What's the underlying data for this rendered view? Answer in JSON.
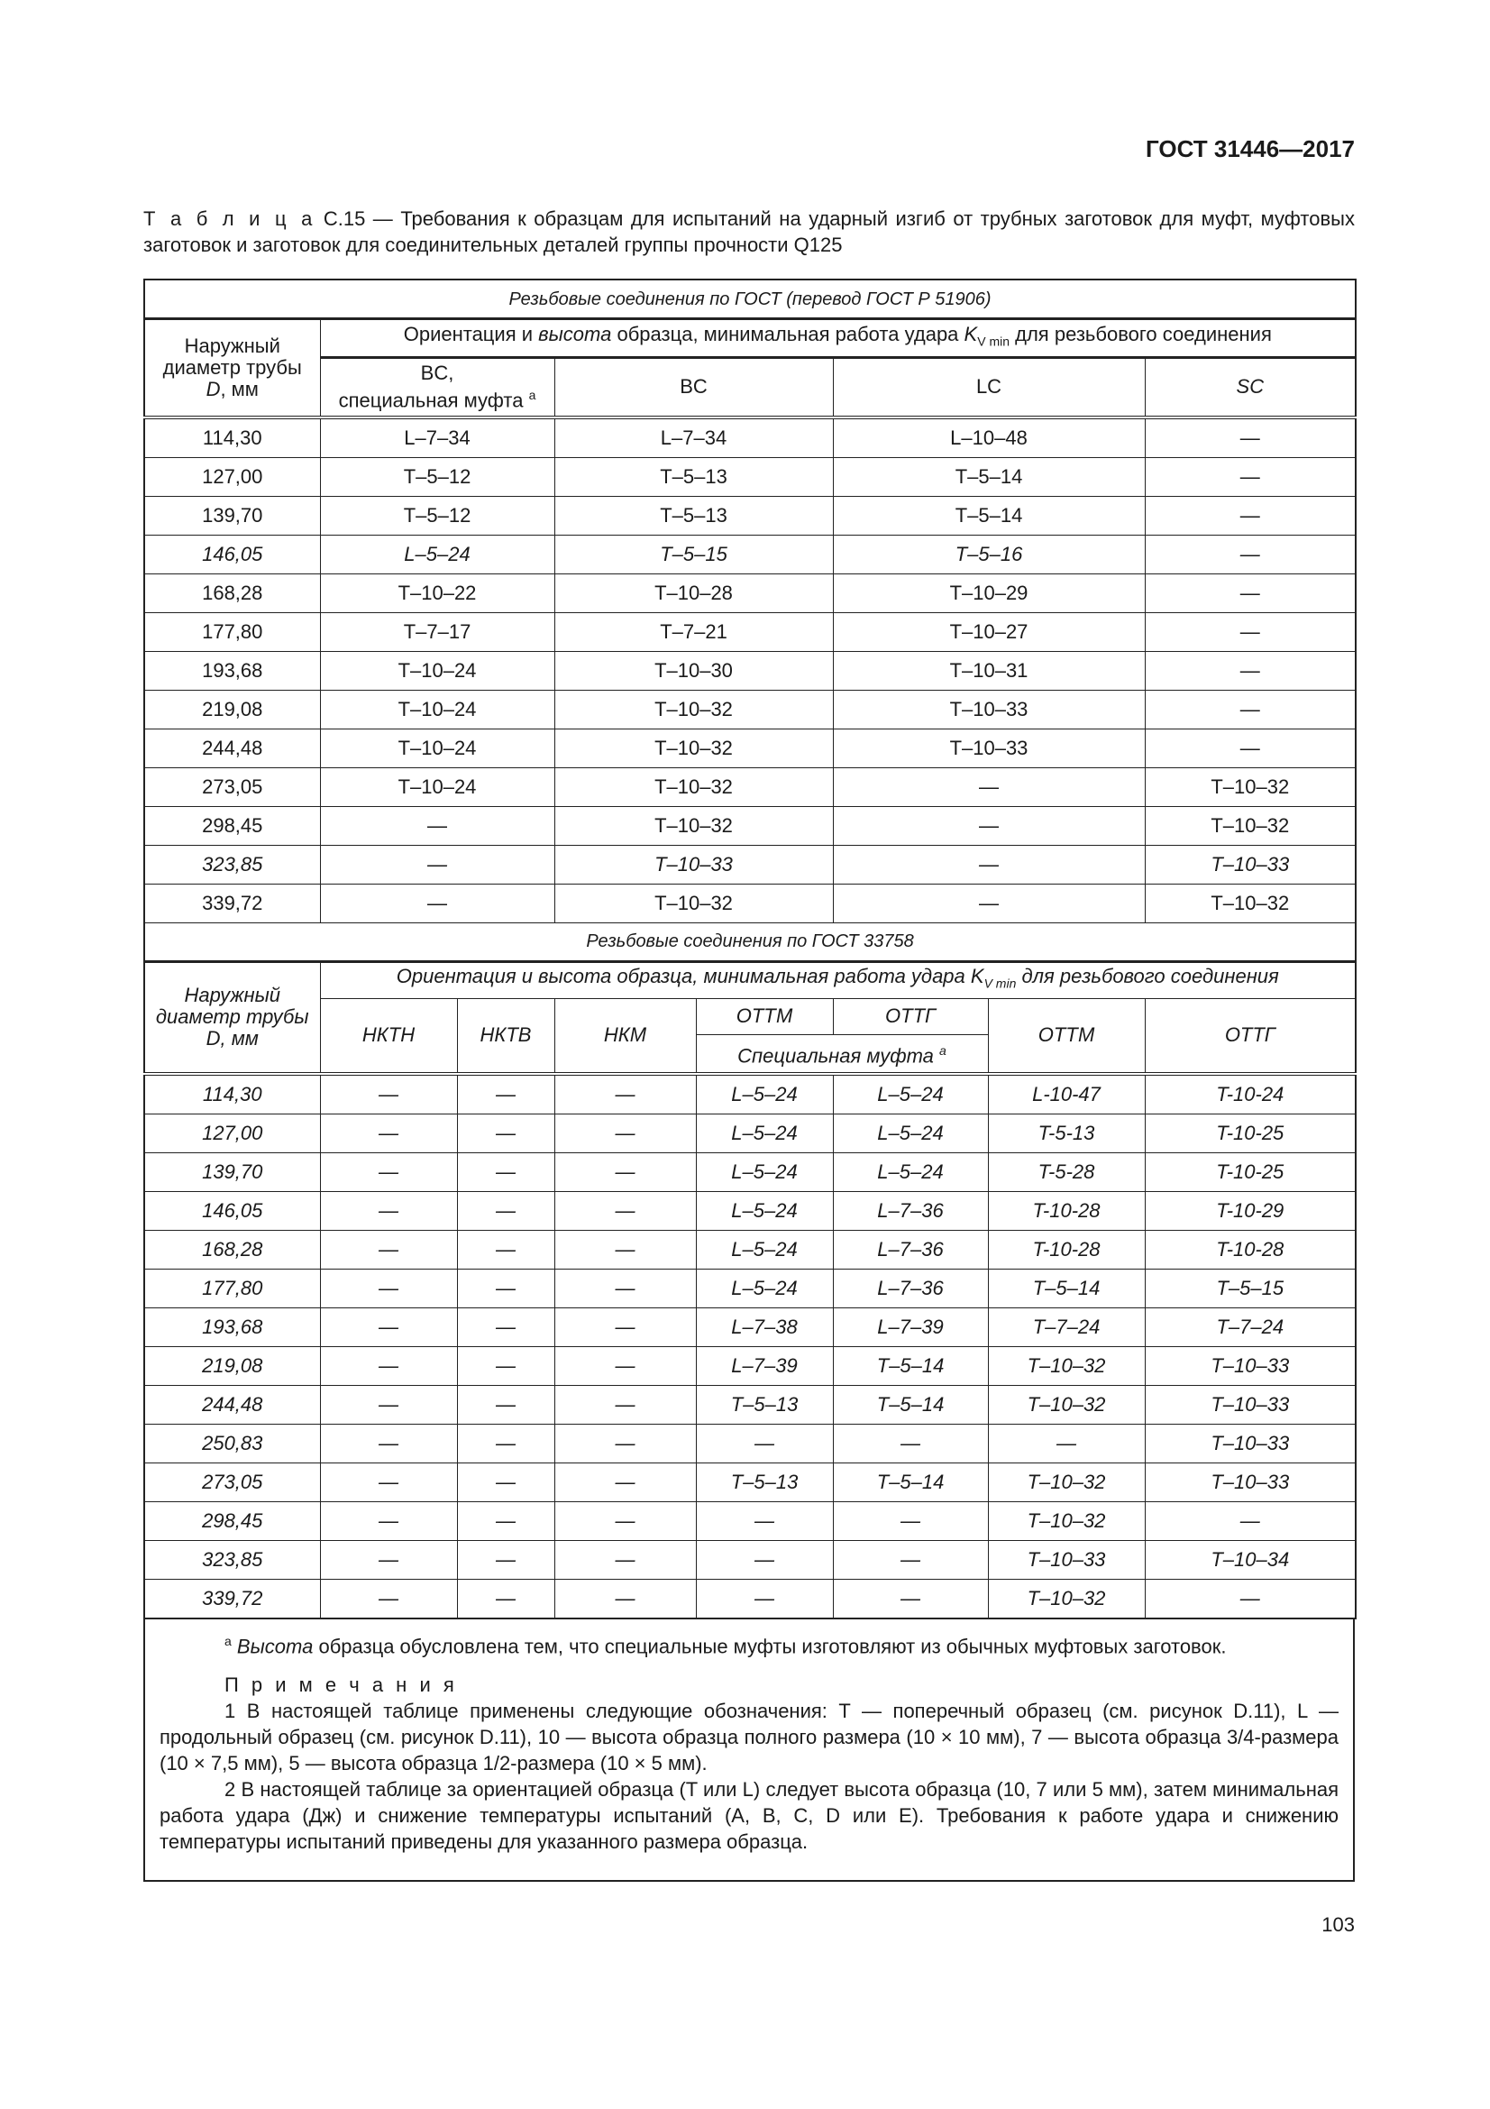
{
  "header": {
    "doc_id": "ГОСТ 31446—2017"
  },
  "caption": {
    "label": "Т а б л и ц а",
    "text": "С.15 — Требования к образцам для испытаний на ударный изгиб от трубных заготовок для муфт, муфтовых заготовок и заготовок для соединительных деталей группы прочности Q125"
  },
  "table1": {
    "section": "Резьбовые соединения по ГОСТ (перевод ГОСТ Р 51906)",
    "col_diameter": "Наружный диаметр трубы",
    "col_diameter_unit_d": "D",
    "col_diameter_unit": ", мм",
    "group_pre": "Ориентация и ",
    "group_it": "высота",
    "group_mid": " образца, минимальная работа удара ",
    "group_k": "K",
    "group_sub": "V min",
    "group_post": " для резьбового соединения",
    "cols": [
      "BC,",
      "BC",
      "LC",
      "SC"
    ],
    "col1_sub": "специальная муфта",
    "footnote_mark": "a",
    "rows": [
      {
        "d": "114,30",
        "v": [
          "L–7–34",
          "L–7–34",
          "L–10–48",
          "—"
        ]
      },
      {
        "d": "127,00",
        "v": [
          "T–5–12",
          "T–5–13",
          "T–5–14",
          "—"
        ]
      },
      {
        "d": "139,70",
        "v": [
          "T–5–12",
          "T–5–13",
          "T–5–14",
          "—"
        ]
      },
      {
        "d": "146,05",
        "v": [
          "L–5–24",
          "T–5–15",
          "T–5–16",
          "—"
        ],
        "italic": true
      },
      {
        "d": "168,28",
        "v": [
          "T–10–22",
          "T–10–28",
          "T–10–29",
          "—"
        ]
      },
      {
        "d": "177,80",
        "v": [
          "T–7–17",
          "T–7–21",
          "T–10–27",
          "—"
        ]
      },
      {
        "d": "193,68",
        "v": [
          "T–10–24",
          "T–10–30",
          "T–10–31",
          "—"
        ]
      },
      {
        "d": "219,08",
        "v": [
          "T–10–24",
          "T–10–32",
          "T–10–33",
          "—"
        ]
      },
      {
        "d": "244,48",
        "v": [
          "T–10–24",
          "T–10–32",
          "T–10–33",
          "—"
        ]
      },
      {
        "d": "273,05",
        "v": [
          "T–10–24",
          "T–10–32",
          "—",
          "T–10–32"
        ]
      },
      {
        "d": "298,45",
        "v": [
          "—",
          "T–10–32",
          "—",
          "T–10–32"
        ]
      },
      {
        "d": "323,85",
        "v": [
          "—",
          "T–10–33",
          "—",
          "T–10–33"
        ],
        "italic": true
      },
      {
        "d": "339,72",
        "v": [
          "—",
          "T–10–32",
          "—",
          "T–10–32"
        ]
      }
    ]
  },
  "table2": {
    "section": "Резьбовые соединения по ГОСТ 33758",
    "col_diameter": "Наружный диаметр трубы D, мм",
    "group_pre": "Ориентация и высота образца, минимальная работа удара ",
    "group_k": "K",
    "group_sub": "V min",
    "group_post": " для резьбового соединения",
    "cols": [
      "НКТН",
      "НКТВ",
      "НКМ",
      "ОТТМ",
      "ОТТГ",
      "ОТТМ",
      "ОТТГ"
    ],
    "special": "Специальная муфта",
    "footnote_mark": "a",
    "rows": [
      {
        "d": "114,30",
        "v": [
          "—",
          "—",
          "—",
          "L–5–24",
          "L–5–24",
          "L-10-47",
          "T-10-24"
        ]
      },
      {
        "d": "127,00",
        "v": [
          "—",
          "—",
          "—",
          "L–5–24",
          "L–5–24",
          "T-5-13",
          "T-10-25"
        ]
      },
      {
        "d": "139,70",
        "v": [
          "—",
          "—",
          "—",
          "L–5–24",
          "L–5–24",
          "T-5-28",
          "T-10-25"
        ]
      },
      {
        "d": "146,05",
        "v": [
          "—",
          "—",
          "—",
          "L–5–24",
          "L–7–36",
          "T-10-28",
          "T-10-29"
        ]
      },
      {
        "d": "168,28",
        "v": [
          "—",
          "—",
          "—",
          "L–5–24",
          "L–7–36",
          "T-10-28",
          "T-10-28"
        ]
      },
      {
        "d": "177,80",
        "v": [
          "—",
          "—",
          "—",
          "L–5–24",
          "L–7–36",
          "T–5–14",
          "T–5–15"
        ]
      },
      {
        "d": "193,68",
        "v": [
          "—",
          "—",
          "—",
          "L–7–38",
          "L–7–39",
          "T–7–24",
          "T–7–24"
        ]
      },
      {
        "d": "219,08",
        "v": [
          "—",
          "—",
          "—",
          "L–7–39",
          "T–5–14",
          "T–10–32",
          "T–10–33"
        ]
      },
      {
        "d": "244,48",
        "v": [
          "—",
          "—",
          "—",
          "T–5–13",
          "T–5–14",
          "T–10–32",
          "T–10–33"
        ]
      },
      {
        "d": "250,83",
        "v": [
          "—",
          "—",
          "—",
          "—",
          "—",
          "—",
          "T–10–33"
        ]
      },
      {
        "d": "273,05",
        "v": [
          "—",
          "—",
          "—",
          "T–5–13",
          "T–5–14",
          "T–10–32",
          "T–10–33"
        ]
      },
      {
        "d": "298,45",
        "v": [
          "—",
          "—",
          "—",
          "—",
          "—",
          "T–10–32",
          "—"
        ]
      },
      {
        "d": "323,85",
        "v": [
          "—",
          "—",
          "—",
          "—",
          "—",
          "T–10–33",
          "T–10–34"
        ]
      },
      {
        "d": "339,72",
        "v": [
          "—",
          "—",
          "—",
          "—",
          "—",
          "T–10–32",
          "—"
        ]
      }
    ]
  },
  "notes": {
    "footnote_mark": "a",
    "footnote_it": "Высота",
    "footnote_text": " образца обусловлена тем, что специальные муфты изготовляют из обычных муфтовых заготовок.",
    "title": "П р и м е ч а н и я",
    "items": [
      "1 В настоящей таблице применены следующие обозначения: T — поперечный образец (см. рисунок D.11), L — продольный образец (см. рисунок D.11), 10 — высота образца полного размера (10 × 10 мм), 7 — высота образца 3/4-размера (10 × 7,5 мм), 5 — высота образца 1/2-размера (10 × 5 мм).",
      "2 В настоящей таблице за ориентацией образца (T или L) следует высота образца (10, 7 или 5 мм), затем минимальная работа удара (Дж) и снижение температуры испытаний (A, B, C, D или E). Требования к работе удара и снижению температуры испытаний приведены для указанного размера образца."
    ]
  },
  "page_number": "103"
}
